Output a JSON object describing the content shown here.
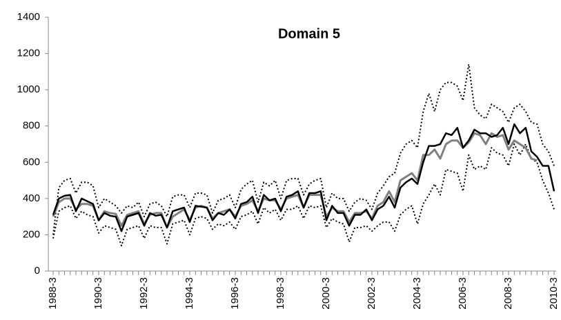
{
  "chart_data": {
    "type": "line",
    "title": "Domain 5",
    "categories": [
      "1988-3",
      null,
      null,
      null,
      null,
      null,
      null,
      null,
      "1990-3",
      null,
      null,
      null,
      null,
      null,
      null,
      null,
      "1992-3",
      null,
      null,
      null,
      null,
      null,
      null,
      null,
      "1994-3",
      null,
      null,
      null,
      null,
      null,
      null,
      null,
      "1996-3",
      null,
      null,
      null,
      null,
      null,
      null,
      null,
      "1998-3",
      null,
      null,
      null,
      null,
      null,
      null,
      null,
      "2000-3",
      null,
      null,
      null,
      null,
      null,
      null,
      null,
      "2002-3",
      null,
      null,
      null,
      null,
      null,
      null,
      null,
      "2004-3",
      null,
      null,
      null,
      null,
      null,
      null,
      null,
      "2006-3",
      null,
      null,
      null,
      null,
      null,
      null,
      null,
      "2008-3",
      null,
      null,
      null,
      null,
      null,
      null,
      null,
      "2010-3"
    ],
    "series": [
      {
        "color": "#000000",
        "style": "solid",
        "values": [
          310,
          400,
          415,
          420,
          330,
          400,
          385,
          370,
          280,
          320,
          305,
          300,
          220,
          300,
          310,
          320,
          250,
          320,
          305,
          310,
          240,
          330,
          340,
          350,
          270,
          360,
          355,
          350,
          280,
          320,
          310,
          340,
          290,
          370,
          380,
          410,
          320,
          420,
          390,
          400,
          330,
          410,
          420,
          440,
          350,
          430,
          430,
          440,
          280,
          360,
          320,
          320,
          250,
          310,
          310,
          340,
          280,
          340,
          360,
          410,
          350,
          460,
          490,
          510,
          480,
          600,
          690,
          690,
          700,
          760,
          750,
          790,
          680,
          720,
          780,
          760,
          760,
          740,
          750,
          790,
          700,
          810,
          760,
          790,
          660,
          630,
          580,
          580,
          440
        ]
      },
      {
        "color": "#808080",
        "style": "solid",
        "values": [
          300,
          380,
          400,
          400,
          340,
          370,
          370,
          360,
          280,
          330,
          320,
          315,
          250,
          310,
          320,
          330,
          260,
          310,
          320,
          320,
          240,
          300,
          320,
          340,
          280,
          350,
          360,
          350,
          290,
          320,
          330,
          340,
          300,
          360,
          370,
          390,
          330,
          400,
          390,
          390,
          340,
          400,
          410,
          420,
          350,
          420,
          420,
          420,
          300,
          350,
          330,
          330,
          270,
          320,
          320,
          330,
          290,
          360,
          380,
          440,
          380,
          500,
          520,
          540,
          500,
          640,
          640,
          670,
          620,
          700,
          720,
          720,
          680,
          710,
          760,
          750,
          700,
          760,
          740,
          750,
          670,
          720,
          700,
          680,
          620,
          610,
          null,
          null,
          null
        ]
      },
      {
        "color": "#000000",
        "style": "dotted",
        "values": [
          200,
          460,
          500,
          510,
          430,
          490,
          490,
          470,
          350,
          400,
          380,
          360,
          320,
          360,
          350,
          380,
          300,
          370,
          380,
          360,
          300,
          410,
          420,
          420,
          350,
          430,
          430,
          420,
          320,
          390,
          400,
          420,
          350,
          450,
          480,
          500,
          380,
          490,
          470,
          500,
          400,
          500,
          510,
          510,
          420,
          480,
          500,
          510,
          350,
          430,
          400,
          400,
          330,
          380,
          400,
          390,
          340,
          430,
          470,
          520,
          540,
          650,
          700,
          720,
          680,
          880,
          980,
          880,
          1000,
          1040,
          1040,
          1020,
          940,
          1140,
          900,
          860,
          840,
          920,
          900,
          880,
          820,
          900,
          920,
          880,
          820,
          810,
          700,
          660,
          580
        ]
      },
      {
        "color": "#000000",
        "style": "dotted",
        "values": [
          180,
          330,
          350,
          360,
          290,
          330,
          310,
          300,
          210,
          250,
          240,
          230,
          140,
          230,
          240,
          250,
          180,
          250,
          240,
          240,
          150,
          260,
          270,
          280,
          200,
          290,
          300,
          290,
          230,
          260,
          250,
          270,
          230,
          300,
          310,
          330,
          260,
          350,
          320,
          340,
          280,
          340,
          340,
          360,
          290,
          360,
          350,
          360,
          240,
          290,
          270,
          260,
          160,
          240,
          240,
          250,
          220,
          250,
          270,
          270,
          220,
          310,
          340,
          360,
          260,
          370,
          420,
          480,
          420,
          560,
          550,
          540,
          440,
          640,
          560,
          580,
          560,
          680,
          650,
          640,
          580,
          700,
          640,
          700,
          620,
          600,
          500,
          430,
          340
        ]
      }
    ],
    "ylim": [
      0,
      1400
    ],
    "yticks": [
      0,
      200,
      400,
      600,
      800,
      1000,
      1200,
      1400
    ],
    "grid": false
  }
}
